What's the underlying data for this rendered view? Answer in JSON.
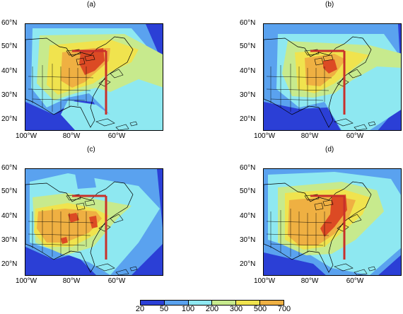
{
  "panels": [
    {
      "label": "(a)"
    },
    {
      "label": "(b)"
    },
    {
      "label": "(c)"
    },
    {
      "label": "(d)"
    }
  ],
  "lat_labels": [
    "60°N",
    "50°N",
    "40°N",
    "30°N",
    "20°N"
  ],
  "lon_labels": [
    "100°W",
    "80°W",
    "60°W"
  ],
  "colorbar": {
    "labels": [
      "20",
      "50",
      "100",
      "200",
      "300",
      "500",
      "700"
    ],
    "colors": [
      "#2b3fd6",
      "#5aa2ef",
      "#8ee8f1",
      "#c7ea8d",
      "#f0e34e",
      "#efb042",
      "#dc4a24"
    ]
  },
  "transect_color": "#c8302a"
}
